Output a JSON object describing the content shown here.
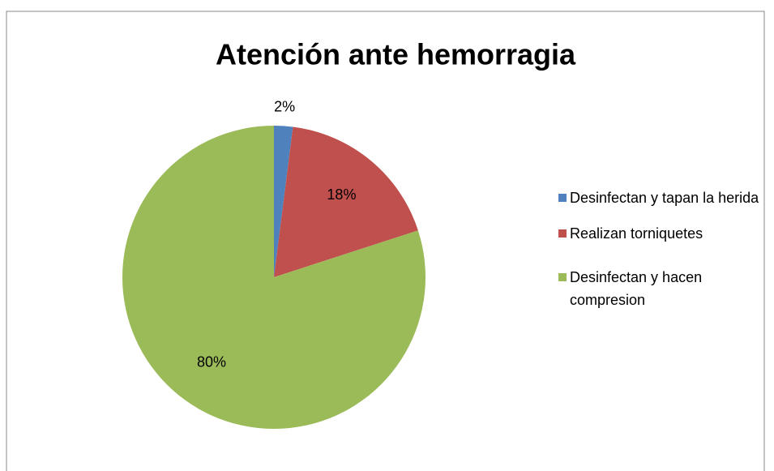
{
  "chart_data": {
    "type": "pie",
    "title": "Atención ante hemorragia",
    "categories": [
      "Desinfectan y tapan la herida",
      "Realizan torniquetes",
      "Desinfectan y hacen compresion"
    ],
    "values": [
      2,
      18,
      80
    ],
    "value_labels": [
      "2%",
      "18%",
      "80%"
    ],
    "colors": [
      "#4f81bd",
      "#c0504d",
      "#9bbb59"
    ],
    "legend": "right"
  }
}
